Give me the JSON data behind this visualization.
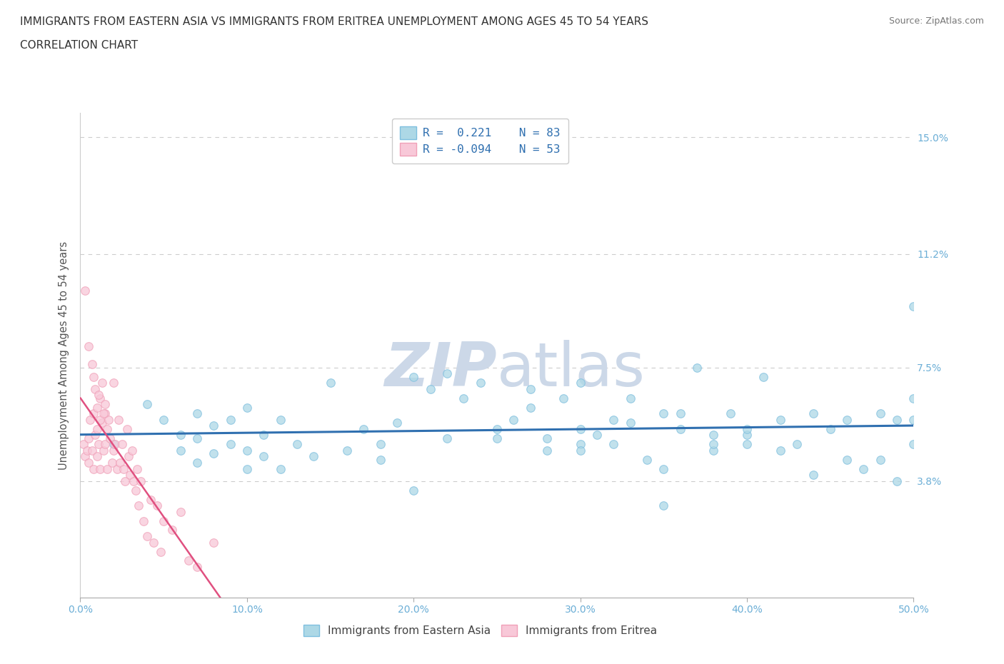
{
  "title_line1": "IMMIGRANTS FROM EASTERN ASIA VS IMMIGRANTS FROM ERITREA UNEMPLOYMENT AMONG AGES 45 TO 54 YEARS",
  "title_line2": "CORRELATION CHART",
  "source_text": "Source: ZipAtlas.com",
  "ylabel": "Unemployment Among Ages 45 to 54 years",
  "xlim": [
    0.0,
    0.5
  ],
  "ylim": [
    0.0,
    0.158
  ],
  "yticks": [
    0.038,
    0.075,
    0.112,
    0.15
  ],
  "ytick_labels": [
    "3.8%",
    "7.5%",
    "11.2%",
    "15.0%"
  ],
  "xticks": [
    0.0,
    0.1,
    0.2,
    0.3,
    0.4,
    0.5
  ],
  "xtick_labels": [
    "0.0%",
    "10.0%",
    "20.0%",
    "30.0%",
    "40.0%",
    "50.0%"
  ],
  "color_blue": "#7fbfdf",
  "color_blue_fill": "#add8e6",
  "color_pink": "#f0a0b8",
  "color_pink_fill": "#f8c8d8",
  "color_trendline_blue": "#3070b0",
  "color_trendline_pink": "#e05080",
  "color_axis_labels": "#6baed6",
  "color_grid": "#cccccc",
  "watermark_color": "#ccd8e8",
  "blue_x": [
    0.02,
    0.04,
    0.05,
    0.06,
    0.06,
    0.07,
    0.07,
    0.07,
    0.08,
    0.08,
    0.09,
    0.09,
    0.1,
    0.1,
    0.1,
    0.11,
    0.11,
    0.12,
    0.12,
    0.13,
    0.14,
    0.15,
    0.16,
    0.17,
    0.18,
    0.19,
    0.2,
    0.21,
    0.22,
    0.23,
    0.24,
    0.25,
    0.26,
    0.27,
    0.28,
    0.29,
    0.3,
    0.3,
    0.31,
    0.32,
    0.33,
    0.34,
    0.35,
    0.36,
    0.37,
    0.38,
    0.39,
    0.4,
    0.4,
    0.41,
    0.42,
    0.43,
    0.44,
    0.45,
    0.46,
    0.47,
    0.48,
    0.49,
    0.49,
    0.5,
    0.5,
    0.5,
    0.5,
    0.27,
    0.28,
    0.3,
    0.32,
    0.33,
    0.35,
    0.36,
    0.38,
    0.4,
    0.42,
    0.44,
    0.46,
    0.48,
    0.35,
    0.38,
    0.3,
    0.25,
    0.22,
    0.2,
    0.18
  ],
  "blue_y": [
    0.05,
    0.063,
    0.058,
    0.053,
    0.048,
    0.06,
    0.052,
    0.044,
    0.056,
    0.047,
    0.058,
    0.05,
    0.062,
    0.048,
    0.042,
    0.053,
    0.046,
    0.058,
    0.042,
    0.05,
    0.046,
    0.07,
    0.048,
    0.055,
    0.05,
    0.057,
    0.072,
    0.068,
    0.073,
    0.065,
    0.07,
    0.052,
    0.058,
    0.062,
    0.052,
    0.065,
    0.07,
    0.05,
    0.053,
    0.058,
    0.065,
    0.045,
    0.06,
    0.055,
    0.075,
    0.048,
    0.06,
    0.05,
    0.053,
    0.072,
    0.058,
    0.05,
    0.06,
    0.055,
    0.045,
    0.042,
    0.06,
    0.058,
    0.038,
    0.095,
    0.065,
    0.05,
    0.058,
    0.068,
    0.048,
    0.055,
    0.05,
    0.057,
    0.042,
    0.06,
    0.053,
    0.055,
    0.048,
    0.04,
    0.058,
    0.045,
    0.03,
    0.05,
    0.048,
    0.055,
    0.052,
    0.035,
    0.045
  ],
  "pink_x": [
    0.002,
    0.003,
    0.004,
    0.005,
    0.005,
    0.006,
    0.007,
    0.008,
    0.008,
    0.009,
    0.01,
    0.01,
    0.011,
    0.012,
    0.012,
    0.013,
    0.014,
    0.015,
    0.015,
    0.016,
    0.017,
    0.018,
    0.019,
    0.02,
    0.02,
    0.021,
    0.022,
    0.023,
    0.024,
    0.025,
    0.026,
    0.027,
    0.028,
    0.029,
    0.03,
    0.031,
    0.032,
    0.033,
    0.034,
    0.035,
    0.036,
    0.038,
    0.04,
    0.042,
    0.044,
    0.046,
    0.048,
    0.05,
    0.055,
    0.06,
    0.065,
    0.07,
    0.08
  ],
  "pink_y": [
    0.05,
    0.046,
    0.048,
    0.052,
    0.044,
    0.058,
    0.048,
    0.042,
    0.06,
    0.053,
    0.055,
    0.046,
    0.05,
    0.042,
    0.065,
    0.057,
    0.048,
    0.06,
    0.05,
    0.042,
    0.058,
    0.052,
    0.044,
    0.048,
    0.07,
    0.05,
    0.042,
    0.058,
    0.044,
    0.05,
    0.042,
    0.038,
    0.055,
    0.046,
    0.04,
    0.048,
    0.038,
    0.035,
    0.042,
    0.03,
    0.038,
    0.025,
    0.02,
    0.032,
    0.018,
    0.03,
    0.015,
    0.025,
    0.022,
    0.028,
    0.012,
    0.01,
    0.018
  ],
  "pink_high_y": [
    0.1,
    0.082,
    0.076,
    0.068,
    0.072,
    0.062,
    0.066,
    0.058,
    0.07,
    0.06,
    0.063,
    0.055
  ],
  "pink_high_x": [
    0.003,
    0.005,
    0.007,
    0.009,
    0.008,
    0.01,
    0.011,
    0.012,
    0.013,
    0.014,
    0.015,
    0.016
  ]
}
